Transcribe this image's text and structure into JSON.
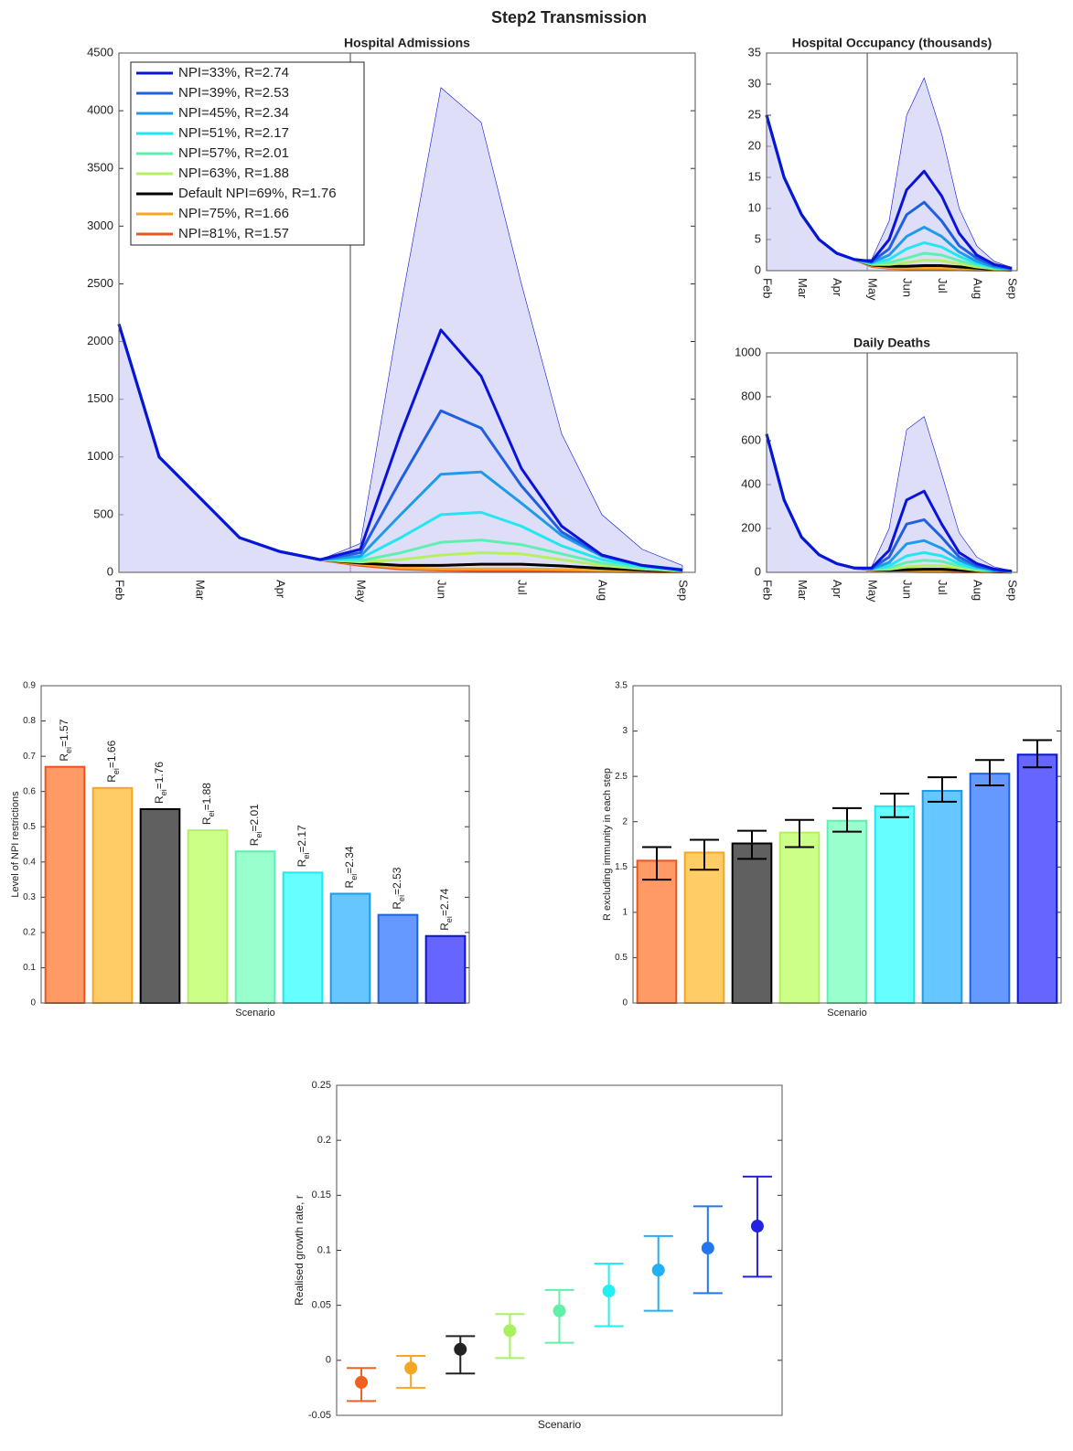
{
  "title": "Step2 Transmission",
  "chart_data": [
    {
      "type": "line",
      "title": "Hospital Admissions",
      "legend": "upper left",
      "categories": [
        "Feb",
        null,
        "Mar",
        null,
        "Apr",
        null,
        "May",
        null,
        "Jun",
        null,
        "Jul",
        null,
        "Aug",
        null,
        "Sep"
      ],
      "ylim": [
        0,
        4500
      ],
      "yticks": [
        0,
        500,
        1000,
        1500,
        2000,
        2500,
        3000,
        3500,
        4000,
        4500
      ],
      "series": [
        {
          "name": "NPI=33%, R=2.74",
          "color": "#0a14d8",
          "values": [
            2150,
            1000,
            650,
            300,
            180,
            110,
            200,
            1200,
            2100,
            1700,
            900,
            400,
            150,
            60,
            20
          ],
          "upper": [
            2150,
            1000,
            650,
            300,
            180,
            110,
            250,
            2300,
            4200,
            3900,
            2500,
            1200,
            500,
            200,
            60
          ]
        },
        {
          "name": "NPI=39%, R=2.53",
          "color": "#1f5fe0",
          "values": [
            2150,
            1000,
            650,
            300,
            180,
            110,
            170,
            800,
            1400,
            1250,
            750,
            350,
            150,
            60,
            20
          ]
        },
        {
          "name": "NPI=45%, R=2.34",
          "color": "#1e9be8",
          "values": [
            2150,
            1000,
            650,
            300,
            180,
            110,
            140,
            500,
            850,
            870,
            600,
            320,
            140,
            60,
            25
          ]
        },
        {
          "name": "NPI=51%, R=2.17",
          "color": "#22e6f0",
          "values": [
            2150,
            1000,
            650,
            300,
            180,
            110,
            120,
            300,
            500,
            520,
            400,
            230,
            110,
            50,
            20
          ]
        },
        {
          "name": "NPI=57%, R=2.01",
          "color": "#5ef0b0",
          "values": [
            2150,
            1000,
            650,
            300,
            180,
            110,
            100,
            170,
            260,
            280,
            240,
            160,
            80,
            40,
            15
          ]
        },
        {
          "name": "NPI=63%, R=1.88",
          "color": "#b6f060",
          "values": [
            2150,
            1000,
            650,
            300,
            180,
            110,
            90,
            110,
            150,
            170,
            160,
            110,
            60,
            30,
            12
          ]
        },
        {
          "name": "Default NPI=69%, R=1.76",
          "color": "#000000",
          "values": [
            2150,
            1000,
            650,
            300,
            180,
            110,
            80,
            60,
            60,
            70,
            70,
            55,
            35,
            20,
            10
          ]
        },
        {
          "name": "NPI=75%, R=1.66",
          "color": "#f5a623",
          "values": [
            2150,
            1000,
            650,
            300,
            180,
            110,
            70,
            40,
            30,
            30,
            30,
            25,
            18,
            12,
            6
          ]
        },
        {
          "name": "NPI=81%, R=1.57",
          "color": "#e8561e",
          "values": [
            2150,
            1000,
            650,
            300,
            180,
            110,
            60,
            30,
            20,
            15,
            12,
            10,
            8,
            5,
            3
          ]
        }
      ]
    },
    {
      "type": "line",
      "title": "Hospital Occupancy (thousands)",
      "categories": [
        "Feb",
        null,
        "Mar",
        null,
        "Apr",
        null,
        "May",
        null,
        "Jun",
        null,
        "Jul",
        null,
        "Aug",
        null,
        "Sep"
      ],
      "ylim": [
        0,
        35
      ],
      "yticks": [
        0,
        5,
        10,
        15,
        20,
        25,
        30,
        35
      ],
      "series": [
        {
          "color": "#0a14d8",
          "values": [
            25,
            15,
            9,
            5,
            2.8,
            1.8,
            1.5,
            5,
            13,
            16,
            12,
            6,
            2.5,
            1,
            0.4
          ],
          "upper": [
            25,
            15,
            9,
            5,
            2.8,
            1.8,
            1.8,
            8,
            25,
            31,
            22,
            10,
            4,
            1.5,
            0.5
          ]
        },
        {
          "color": "#1f5fe0",
          "values": [
            25,
            15,
            9,
            5,
            2.8,
            1.8,
            1.4,
            3.5,
            9,
            11,
            8,
            4,
            2,
            0.8,
            0.3
          ]
        },
        {
          "color": "#1e9be8",
          "values": [
            25,
            15,
            9,
            5,
            2.8,
            1.8,
            1.3,
            2.5,
            5.5,
            7,
            5.5,
            3,
            1.5,
            0.6,
            0.3
          ]
        },
        {
          "color": "#22e6f0",
          "values": [
            25,
            15,
            9,
            5,
            2.8,
            1.8,
            1.2,
            1.8,
            3.5,
            4.5,
            3.8,
            2.3,
            1.2,
            0.5,
            0.2
          ]
        },
        {
          "color": "#5ef0b0",
          "values": [
            25,
            15,
            9,
            5,
            2.8,
            1.8,
            1.1,
            1.3,
            2,
            2.8,
            2.5,
            1.6,
            0.9,
            0.4,
            0.2
          ]
        },
        {
          "color": "#b6f060",
          "values": [
            25,
            15,
            9,
            5,
            2.8,
            1.8,
            1,
            1,
            1.3,
            1.7,
            1.6,
            1.1,
            0.6,
            0.3,
            0.15
          ]
        },
        {
          "color": "#000000",
          "values": [
            25,
            15,
            9,
            5,
            2.8,
            1.8,
            0.9,
            0.7,
            0.7,
            0.8,
            0.8,
            0.6,
            0.4,
            0.2,
            0.1
          ]
        },
        {
          "color": "#f5a623",
          "values": [
            25,
            15,
            9,
            5,
            2.8,
            1.8,
            0.8,
            0.5,
            0.4,
            0.4,
            0.4,
            0.3,
            0.2,
            0.1,
            0.1
          ]
        },
        {
          "color": "#e8561e",
          "values": [
            25,
            15,
            9,
            5,
            2.8,
            1.8,
            0.7,
            0.4,
            0.3,
            0.25,
            0.2,
            0.15,
            0.1,
            0.1,
            0.05
          ]
        }
      ]
    },
    {
      "type": "line",
      "title": "Daily Deaths",
      "categories": [
        "Feb",
        null,
        "Mar",
        null,
        "Apr",
        null,
        "May",
        null,
        "Jun",
        null,
        "Jul",
        null,
        "Aug",
        null,
        "Sep"
      ],
      "ylim": [
        0,
        1000
      ],
      "yticks": [
        0,
        200,
        400,
        600,
        800,
        1000
      ],
      "series": [
        {
          "color": "#0a14d8",
          "values": [
            630,
            330,
            160,
            80,
            40,
            20,
            20,
            100,
            330,
            370,
            220,
            90,
            40,
            15,
            5
          ],
          "upper": [
            630,
            330,
            160,
            80,
            40,
            20,
            25,
            200,
            650,
            710,
            450,
            180,
            70,
            25,
            8
          ]
        },
        {
          "color": "#1f5fe0",
          "values": [
            630,
            330,
            160,
            80,
            40,
            20,
            18,
            70,
            220,
            240,
            160,
            70,
            30,
            12,
            4
          ]
        },
        {
          "color": "#1e9be8",
          "values": [
            630,
            330,
            160,
            80,
            40,
            20,
            16,
            45,
            130,
            145,
            110,
            55,
            25,
            10,
            4
          ]
        },
        {
          "color": "#22e6f0",
          "values": [
            630,
            330,
            160,
            80,
            40,
            20,
            15,
            30,
            75,
            90,
            75,
            40,
            18,
            8,
            3
          ]
        },
        {
          "color": "#5ef0b0",
          "values": [
            630,
            330,
            160,
            80,
            40,
            20,
            14,
            20,
            45,
            55,
            50,
            30,
            14,
            6,
            2
          ]
        },
        {
          "color": "#b6f060",
          "values": [
            630,
            330,
            160,
            80,
            40,
            20,
            13,
            14,
            25,
            30,
            30,
            20,
            10,
            5,
            2
          ]
        },
        {
          "color": "#000000",
          "values": [
            630,
            330,
            160,
            80,
            40,
            20,
            12,
            10,
            12,
            14,
            14,
            10,
            6,
            3,
            1
          ]
        },
        {
          "color": "#f5a623",
          "values": [
            630,
            330,
            160,
            80,
            40,
            20,
            11,
            7,
            6,
            6,
            6,
            5,
            3,
            2,
            1
          ]
        },
        {
          "color": "#e8561e",
          "values": [
            630,
            330,
            160,
            80,
            40,
            20,
            10,
            5,
            4,
            3,
            3,
            2,
            2,
            1,
            1
          ]
        }
      ]
    },
    {
      "type": "bar",
      "x_label": "Scenario",
      "y_label": "Level of NPI restrictions",
      "ylim": [
        0,
        0.9
      ],
      "yticks": [
        0,
        0.1,
        0.2,
        0.3,
        0.4,
        0.5,
        0.6,
        0.7,
        0.8,
        0.9
      ],
      "values": [
        0.67,
        0.61,
        0.55,
        0.49,
        0.43,
        0.37,
        0.31,
        0.25,
        0.19
      ],
      "bar_labels": [
        [
          "R",
          "ei",
          "=1.57"
        ],
        [
          "R",
          "ei",
          "=1.66"
        ],
        [
          "R",
          "ei",
          "=1.76"
        ],
        [
          "R",
          "ei",
          "=1.88"
        ],
        [
          "R",
          "ei",
          "=2.01"
        ],
        [
          "R",
          "ei",
          "=2.17"
        ],
        [
          "R",
          "ei",
          "=2.34"
        ],
        [
          "R",
          "ei",
          "=2.53"
        ],
        [
          "R",
          "ei",
          "=2.74"
        ]
      ],
      "colors": [
        "#ff9966",
        "#ffcc66",
        "#606060",
        "#ccff88",
        "#99ffcc",
        "#66ffff",
        "#66c6ff",
        "#6699ff",
        "#6666ff"
      ],
      "edge_colors": [
        "#e8561e",
        "#f5a623",
        "#000000",
        "#b6f060",
        "#5ef0b0",
        "#22e6f0",
        "#1e9be8",
        "#1f5fe0",
        "#0a14d8"
      ]
    },
    {
      "type": "bar",
      "x_label": "Scenario",
      "y_label": "R excluding immunity in each step",
      "ylim": [
        0,
        3.5
      ],
      "yticks": [
        0,
        0.5,
        1,
        1.5,
        2,
        2.5,
        3,
        3.5
      ],
      "values": [
        1.57,
        1.66,
        1.76,
        1.88,
        2.01,
        2.17,
        2.34,
        2.53,
        2.74
      ],
      "error_low": [
        1.36,
        1.47,
        1.59,
        1.72,
        1.89,
        2.05,
        2.22,
        2.4,
        2.6
      ],
      "error_high": [
        1.72,
        1.8,
        1.9,
        2.02,
        2.15,
        2.31,
        2.49,
        2.68,
        2.9
      ],
      "colors": [
        "#ff9966",
        "#ffcc66",
        "#606060",
        "#ccff88",
        "#99ffcc",
        "#66ffff",
        "#66c6ff",
        "#6699ff",
        "#6666ff"
      ],
      "edge_colors": [
        "#e8561e",
        "#f5a623",
        "#000000",
        "#b6f060",
        "#5ef0b0",
        "#22e6f0",
        "#1e9be8",
        "#1f5fe0",
        "#0a14d8"
      ]
    },
    {
      "type": "errorbar",
      "x_label": "Scenario",
      "y_label": "Realised growth rate, r",
      "ylim": [
        -0.05,
        0.25
      ],
      "yticks": [
        -0.05,
        0,
        0.05,
        0.1,
        0.15,
        0.2,
        0.25
      ],
      "values": [
        -0.02,
        -0.007,
        0.01,
        0.027,
        0.045,
        0.063,
        0.082,
        0.102,
        0.122
      ],
      "error_low": [
        -0.037,
        -0.025,
        -0.012,
        0.002,
        0.016,
        0.031,
        0.045,
        0.061,
        0.076
      ],
      "error_high": [
        -0.007,
        0.004,
        0.022,
        0.042,
        0.064,
        0.088,
        0.113,
        0.14,
        0.167
      ],
      "colors": [
        "#f06020",
        "#f5a623",
        "#222222",
        "#a8f060",
        "#60f0a8",
        "#22f0f0",
        "#22b0f0",
        "#2277f0",
        "#2222e0"
      ]
    }
  ]
}
